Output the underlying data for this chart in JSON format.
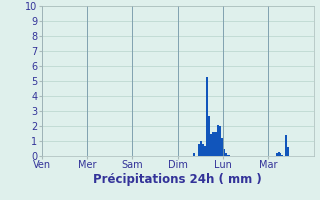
{
  "title": "Précipitations 24h ( mm )",
  "ylim": [
    0,
    10
  ],
  "yticks": [
    0,
    1,
    2,
    3,
    4,
    5,
    6,
    7,
    8,
    9,
    10
  ],
  "background_color": "#dff0ec",
  "bar_color": "#1155bb",
  "grid_color": "#b8d4cc",
  "vline_color": "#7799aa",
  "day_labels": [
    "Ven",
    "Mer",
    "Sam",
    "Dim",
    "Lun",
    "Mar"
  ],
  "day_positions": [
    0,
    24,
    48,
    72,
    96,
    120
  ],
  "num_bars": 144,
  "bar_values": [
    0,
    0,
    0,
    0,
    0,
    0,
    0,
    0,
    0,
    0,
    0,
    0,
    0,
    0,
    0,
    0,
    0,
    0,
    0,
    0,
    0,
    0,
    0,
    0,
    0,
    0,
    0,
    0,
    0,
    0,
    0,
    0,
    0,
    0,
    0,
    0,
    0,
    0,
    0,
    0,
    0,
    0,
    0,
    0,
    0,
    0,
    0,
    0,
    0,
    0,
    0,
    0,
    0,
    0,
    0,
    0,
    0,
    0,
    0,
    0,
    0,
    0,
    0,
    0,
    0,
    0,
    0,
    0,
    0,
    0,
    0,
    0,
    0,
    0,
    0,
    0,
    0,
    0,
    0,
    0,
    0.2,
    0,
    0,
    0.8,
    1.0,
    0.8,
    0.7,
    5.3,
    2.7,
    1.5,
    1.6,
    1.6,
    1.6,
    2.1,
    2.0,
    1.2,
    0.5,
    0.2,
    0.1,
    0.1,
    0,
    0,
    0,
    0,
    0,
    0,
    0,
    0,
    0,
    0,
    0,
    0,
    0,
    0,
    0,
    0,
    0,
    0,
    0,
    0,
    0,
    0,
    0,
    0,
    0.2,
    0.3,
    0.2,
    0.1,
    0,
    1.4,
    0.6,
    0,
    0,
    0,
    0,
    0,
    0,
    0,
    0,
    0,
    0,
    0,
    0,
    0
  ],
  "tick_fontsize": 7,
  "label_fontsize": 8.5,
  "tick_color": "#333399",
  "label_color": "#333399"
}
